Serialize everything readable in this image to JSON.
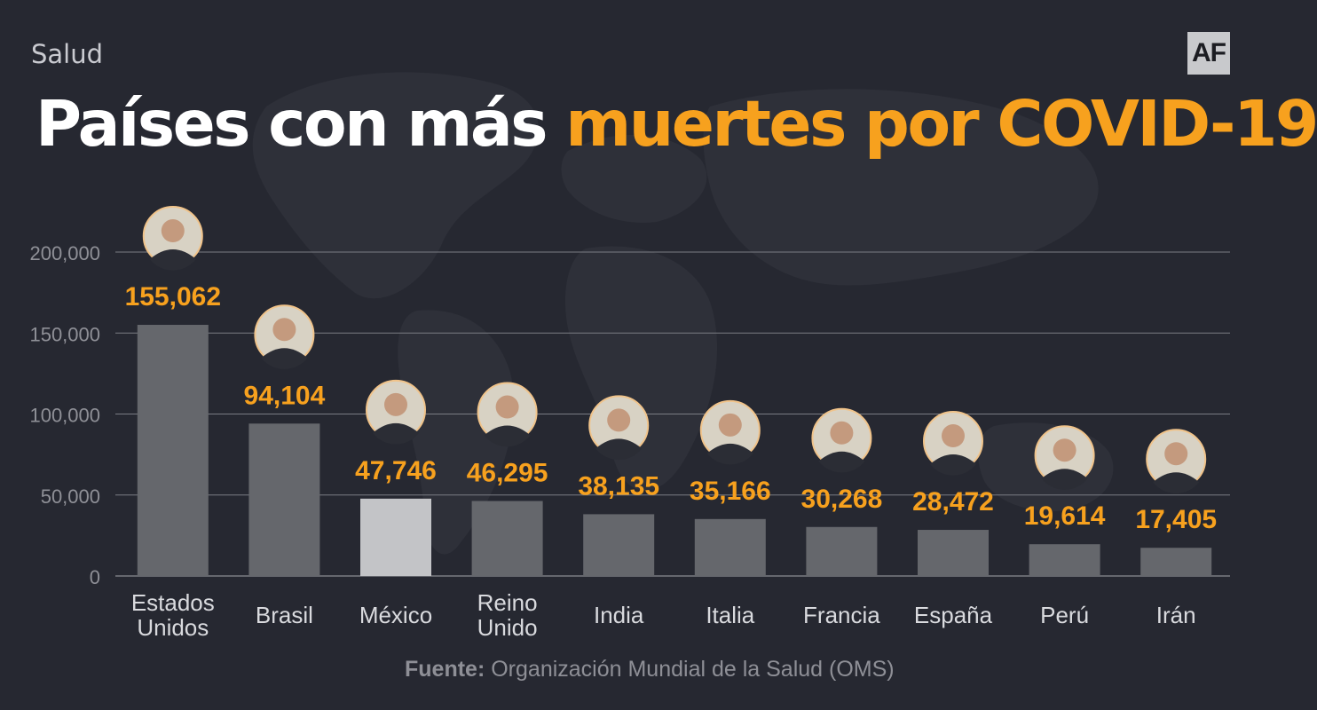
{
  "header": {
    "section": "Salud",
    "logo": "AF",
    "title_white": "Países con más",
    "title_orange": "muertes por COVID-19"
  },
  "source": {
    "label": "Fuente:",
    "text": "Organización Mundial de la Salud (OMS)"
  },
  "colors": {
    "background": "#262831",
    "accent": "#f7a11e",
    "bar": "#65676c",
    "bar_highlight": "#c3c4c7",
    "grid": "#7a7c83"
  },
  "chart_data": {
    "type": "bar",
    "title": "Países con más muertes por COVID-19",
    "categories": [
      "Estados Unidos",
      "Brasil",
      "México",
      "Reino Unido",
      "India",
      "Italia",
      "Francia",
      "España",
      "Perú",
      "Irán"
    ],
    "category_lines": [
      [
        "Estados",
        "Unidos"
      ],
      [
        "Brasil"
      ],
      [
        "México"
      ],
      [
        "Reino",
        "Unido"
      ],
      [
        "India"
      ],
      [
        "Italia"
      ],
      [
        "Francia"
      ],
      [
        "España"
      ],
      [
        "Perú"
      ],
      [
        "Irán"
      ]
    ],
    "values": [
      155062,
      94104,
      47746,
      46295,
      38135,
      35166,
      30268,
      28472,
      19614,
      17405
    ],
    "value_labels": [
      "155,062",
      "94,104",
      "47,746",
      "46,295",
      "38,135",
      "35,166",
      "30,268",
      "28,472",
      "19,614",
      "17,405"
    ],
    "highlight_index": 2,
    "ylim": [
      0,
      200000
    ],
    "yticks": [
      0,
      50000,
      100000,
      150000,
      200000
    ],
    "ytick_labels": [
      "0",
      "50,000",
      "100,000",
      "150,000",
      "200,000"
    ],
    "grid": true,
    "xlabel": "",
    "ylabel": ""
  }
}
